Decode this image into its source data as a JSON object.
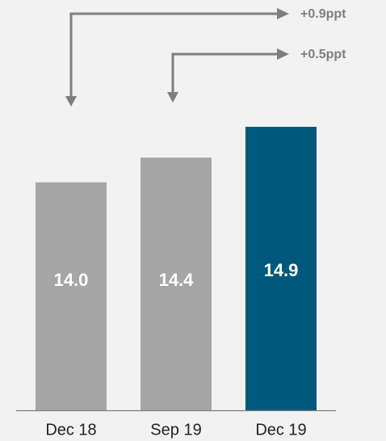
{
  "chart_data": {
    "type": "bar",
    "categories": [
      "Dec 18",
      "Sep 19",
      "Dec 19"
    ],
    "values": [
      14.0,
      14.4,
      14.9
    ],
    "value_labels": [
      "14.0",
      "14.4",
      "14.9"
    ],
    "ylim": [
      10.3,
      14.9
    ],
    "colors": [
      "#a6a6a6",
      "#a6a6a6",
      "#00587c"
    ],
    "arrow_color": "#7f7f7f",
    "axis_color": "#7f7f7f",
    "annotations": [
      {
        "from": "Dec 18",
        "to": "Dec 19",
        "text": "+0.9ppt"
      },
      {
        "from": "Sep 19",
        "to": "Dec 19",
        "text": "+0.5ppt"
      }
    ]
  }
}
